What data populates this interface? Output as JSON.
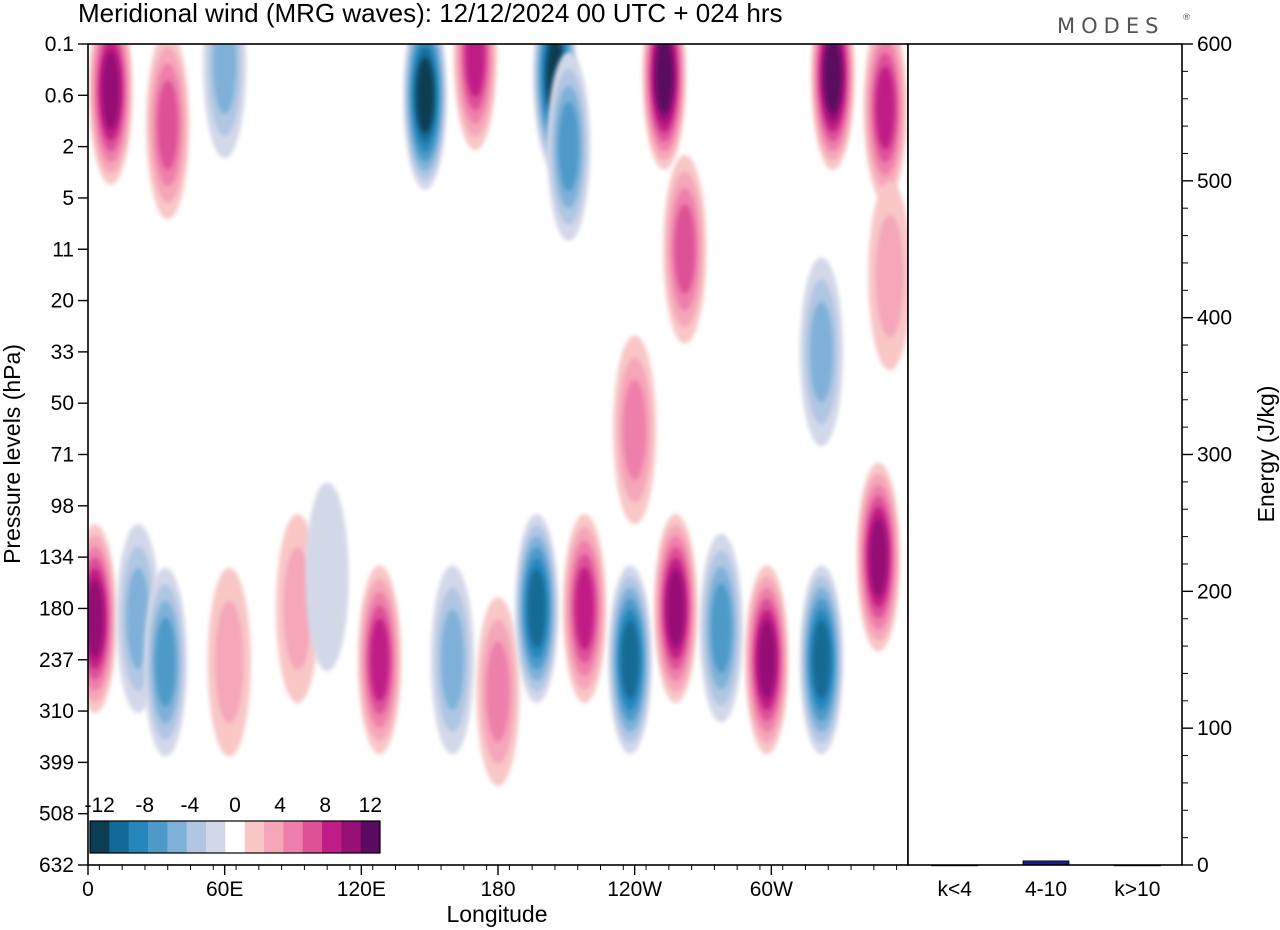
{
  "title": "Meridional wind (MRG waves):  12/12/2024  00 UTC  + 024 hrs",
  "brand": "MODES",
  "brand_mark": "®",
  "chart_data": [
    {
      "type": "heatmap",
      "field": "meridional wind",
      "x_label": "Longitude",
      "y_label": "Pressure levels (hPa)",
      "x_ticks": [
        "0",
        "60E",
        "120E",
        "180",
        "120W",
        "60W"
      ],
      "x_range": [
        0,
        360
      ],
      "y_ticks": [
        "0.1",
        "0.6",
        "2",
        "5",
        "11",
        "20",
        "33",
        "50",
        "71",
        "98",
        "134",
        "180",
        "237",
        "310",
        "399",
        "508",
        "632"
      ],
      "colorbar": {
        "tick_labels": [
          "-12",
          "-8",
          "-4",
          "0",
          "4",
          "8",
          "12"
        ],
        "levels": [
          -14,
          -12,
          -10,
          -8,
          -6,
          -4,
          -2,
          2,
          4,
          6,
          8,
          10,
          12,
          14
        ],
        "colors": [
          "#0b3d55",
          "#136a96",
          "#2586bb",
          "#4d9ac9",
          "#7fb1d8",
          "#b0c6e3",
          "#d3d8e9",
          "#ffffff",
          "#f8c7c6",
          "#f5a6b8",
          "#ee7fab",
          "#dd5196",
          "#c11d86",
          "#950f75",
          "#5a0a60"
        ]
      },
      "features": [
        {
          "lon": 3,
          "pres": 190,
          "value": 13
        },
        {
          "lon": 22,
          "pres": 190,
          "value": -7
        },
        {
          "lon": 34,
          "pres": 240,
          "value": -9
        },
        {
          "lon": 62,
          "pres": 240,
          "value": 5
        },
        {
          "lon": 92,
          "pres": 180,
          "value": 4
        },
        {
          "lon": 105,
          "pres": 150,
          "value": -3
        },
        {
          "lon": 128,
          "pres": 237,
          "value": 10
        },
        {
          "lon": 160,
          "pres": 237,
          "value": -6
        },
        {
          "lon": 180,
          "pres": 280,
          "value": 7
        },
        {
          "lon": 197,
          "pres": 180,
          "value": -12
        },
        {
          "lon": 218,
          "pres": 180,
          "value": 10
        },
        {
          "lon": 238,
          "pres": 237,
          "value": -13
        },
        {
          "lon": 258,
          "pres": 180,
          "value": 12
        },
        {
          "lon": 278,
          "pres": 200,
          "value": -8
        },
        {
          "lon": 298,
          "pres": 237,
          "value": 13
        },
        {
          "lon": 322,
          "pres": 237,
          "value": -13
        },
        {
          "lon": 347,
          "pres": 134,
          "value": 12
        },
        {
          "lon": 10,
          "pres": 0.5,
          "value": 13
        },
        {
          "lon": 35,
          "pres": 1.2,
          "value": 8
        },
        {
          "lon": 60,
          "pres": 0.2,
          "value": -7
        },
        {
          "lon": 148,
          "pres": 0.6,
          "value": -14
        },
        {
          "lon": 170,
          "pres": 0.15,
          "value": 10
        },
        {
          "lon": 205,
          "pres": 0.3,
          "value": -14
        },
        {
          "lon": 211,
          "pres": 2,
          "value": -9
        },
        {
          "lon": 253,
          "pres": 0.3,
          "value": 14
        },
        {
          "lon": 327,
          "pres": 0.3,
          "value": 14
        },
        {
          "lon": 350,
          "pres": 0.8,
          "value": 11
        },
        {
          "lon": 262,
          "pres": 11,
          "value": 8
        },
        {
          "lon": 322,
          "pres": 33,
          "value": -7
        },
        {
          "lon": 352,
          "pres": 15,
          "value": 5
        },
        {
          "lon": 240,
          "pres": 60,
          "value": 7
        }
      ]
    },
    {
      "type": "bar",
      "ylabel": "Energy (J/kg)",
      "categories": [
        "k<4",
        "4-10",
        "k>10"
      ],
      "values": [
        0,
        3,
        0
      ],
      "ylim": [
        0,
        600
      ],
      "y_ticks": [
        "0",
        "100",
        "200",
        "300",
        "400",
        "500",
        "600"
      ],
      "bar_color": "#1a1aa0"
    }
  ]
}
